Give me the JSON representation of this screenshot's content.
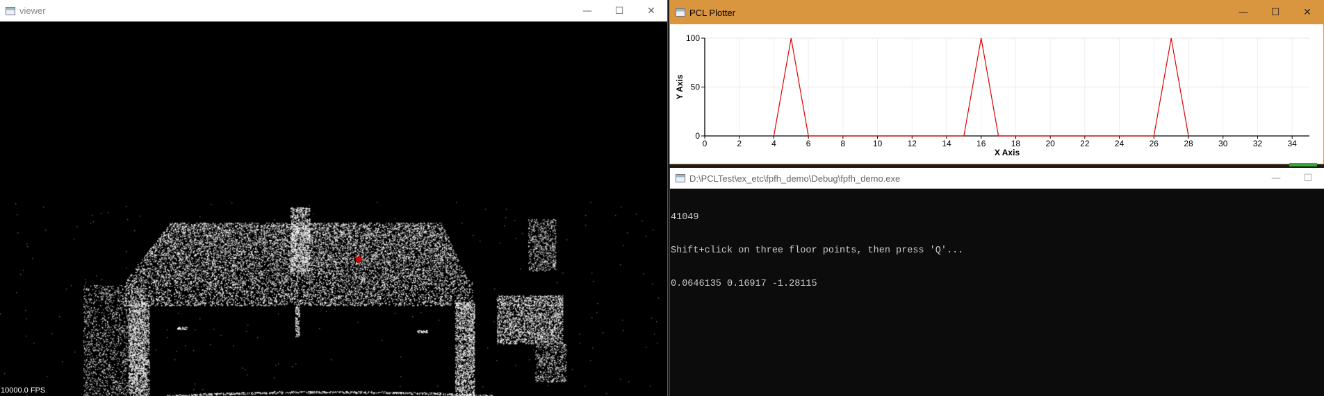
{
  "viewer": {
    "title": "viewer",
    "fps": "10000.0 FPS",
    "controls": {
      "minimize": "—",
      "maximize": "☐",
      "close": "✕"
    }
  },
  "plotter": {
    "title": "PCL Plotter",
    "controls": {
      "minimize": "—",
      "maximize": "☐",
      "close": "✕"
    },
    "accent_color": "#d9963f"
  },
  "console": {
    "title": "D:\\PCLTest\\ex_etc\\fpfh_demo\\Debug\\fpfh_demo.exe",
    "controls": {
      "minimize": "—",
      "maximize": "☐"
    },
    "lines": [
      "41049",
      "Shift+click on three floor points, then press 'Q'...",
      "0.0646135 0.16917 -1.28115"
    ]
  },
  "chart_data": {
    "type": "line",
    "xlabel": "X Axis",
    "ylabel": "Y Axis",
    "xlim": [
      0,
      35
    ],
    "ylim": [
      0,
      100
    ],
    "x_ticks": [
      0,
      2,
      4,
      6,
      8,
      10,
      12,
      14,
      16,
      18,
      20,
      22,
      24,
      26,
      28,
      30,
      32,
      34
    ],
    "y_ticks": [
      0,
      50,
      100
    ],
    "grid": true,
    "series": [
      {
        "color": "#e00000",
        "x": [
          4,
          5,
          6,
          15,
          16,
          17,
          26,
          27,
          28
        ],
        "y": [
          0,
          100,
          0,
          0,
          100,
          0,
          0,
          100,
          0
        ]
      }
    ]
  }
}
